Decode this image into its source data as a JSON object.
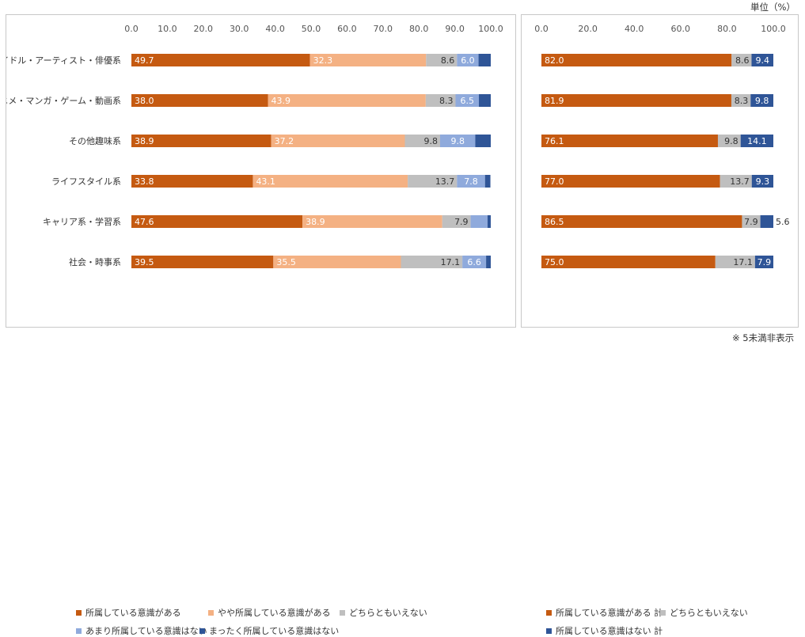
{
  "unit_label": "単位（%）",
  "footnote": "※ 5未満非表示",
  "colors": {
    "aware": "#C55A11",
    "somewhat_aware": "#F4B183",
    "neither": "#BFBFBF",
    "not_really": "#8FAADC",
    "not_at_all": "#2F5597"
  },
  "chart_data": [
    {
      "type": "bar",
      "orientation": "horizontal",
      "stacked": true,
      "xlim": [
        0,
        100
      ],
      "x_ticks": [
        "0.0",
        "10.0",
        "20.0",
        "30.0",
        "40.0",
        "50.0",
        "60.0",
        "70.0",
        "80.0",
        "90.0",
        "100.0"
      ],
      "categories": [
        "アイドル・アーティスト・俳優系",
        "アニメ・マンガ・ゲーム・動画系",
        "その他趣味系",
        "ライフスタイル系",
        "キャリア系・学習系",
        "社会・時事系"
      ],
      "series": [
        {
          "name": "所属している意識がある",
          "color_key": "aware",
          "values": [
            49.7,
            38.0,
            38.9,
            33.8,
            47.6,
            39.5
          ],
          "labels": [
            "49.7",
            "38.0",
            "38.9",
            "33.8",
            "47.6",
            "39.5"
          ]
        },
        {
          "name": "やや所属している意識がある",
          "color_key": "somewhat_aware",
          "values": [
            32.3,
            43.9,
            37.2,
            43.1,
            38.9,
            35.5
          ],
          "labels": [
            "32.3",
            "43.9",
            "37.2",
            "43.1",
            "38.9",
            "35.5"
          ]
        },
        {
          "name": "どちらともいえない",
          "color_key": "neither",
          "values": [
            8.6,
            8.3,
            9.8,
            13.7,
            7.9,
            17.1
          ],
          "labels": [
            "8.6",
            "8.3",
            "9.8",
            "13.7",
            "7.9",
            "17.1"
          ]
        },
        {
          "name": "あまり所属している意識はない",
          "color_key": "not_really",
          "values": [
            6.0,
            6.5,
            9.8,
            7.8,
            4.7,
            6.6
          ],
          "labels": [
            "6.0",
            "6.5",
            "9.8",
            "7.8",
            "",
            "6.6"
          ]
        },
        {
          "name": "まったく所属している意識はない",
          "color_key": "not_at_all",
          "values": [
            3.4,
            3.3,
            4.3,
            1.5,
            0.9,
            1.3
          ],
          "labels": [
            "",
            "",
            "",
            "",
            "",
            ""
          ]
        }
      ]
    },
    {
      "type": "bar",
      "orientation": "horizontal",
      "stacked": true,
      "xlim": [
        0,
        100
      ],
      "x_ticks": [
        "0.0",
        "20.0",
        "40.0",
        "60.0",
        "80.0",
        "100.0"
      ],
      "categories": [
        "アイドル・アーティスト・俳優系",
        "アニメ・マンガ・ゲーム・動画系",
        "その他趣味系",
        "ライフスタイル系",
        "キャリア系・学習系",
        "社会・時事系"
      ],
      "series": [
        {
          "name": "所属している意識がある 計",
          "color_key": "aware",
          "values": [
            82.0,
            81.9,
            76.1,
            77.0,
            86.5,
            75.0
          ],
          "labels": [
            "82.0",
            "81.9",
            "76.1",
            "77.0",
            "86.5",
            "75.0"
          ]
        },
        {
          "name": "どちらともいえない",
          "color_key": "neither",
          "values": [
            8.6,
            8.3,
            9.8,
            13.7,
            7.9,
            17.1
          ],
          "labels": [
            "8.6",
            "8.3",
            "9.8",
            "13.7",
            "7.9",
            "17.1"
          ]
        },
        {
          "name": "所属している意識はない 計",
          "color_key": "not_at_all",
          "values": [
            9.4,
            9.8,
            14.1,
            9.3,
            5.6,
            7.9
          ],
          "labels": [
            "9.4",
            "9.8",
            "14.1",
            "9.3",
            "5.6",
            "7.9"
          ]
        }
      ]
    }
  ]
}
